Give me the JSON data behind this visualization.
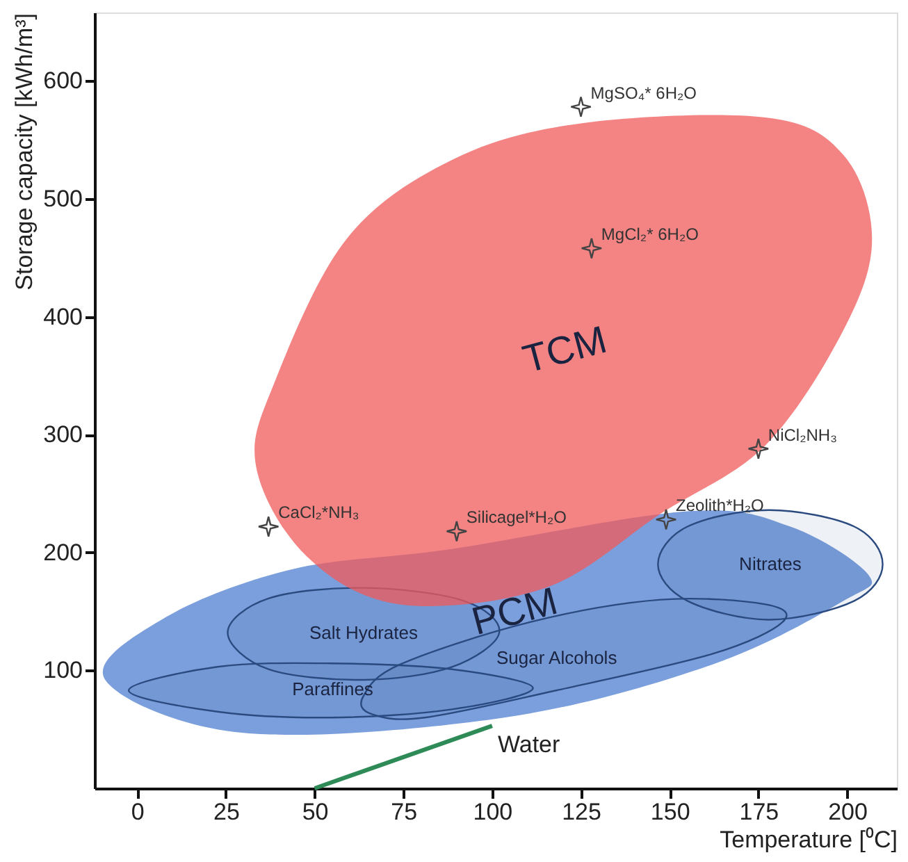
{
  "chart_data": {
    "type": "scatter",
    "xlabel": "Temperature [⁰C]",
    "ylabel": "Storage capacity [kWh/m³]",
    "xlim": [
      -12,
      214
    ],
    "ylim": [
      0,
      658
    ],
    "xticks": [
      0,
      25,
      50,
      75,
      100,
      125,
      150,
      175,
      200
    ],
    "yticks": [
      100,
      200,
      300,
      400,
      500,
      600
    ],
    "grid": false,
    "marker": "star",
    "series": [
      {
        "type": "area",
        "name": "PCM",
        "marker": "none",
        "color": "#4f7fd0",
        "x": [
          -9,
          30,
          103.4,
          162,
          199,
          206,
          184,
          155,
          88.7,
          44,
          8
        ],
        "values": [
          92,
          47,
          60,
          105,
          159,
          181,
          222,
          235,
          203,
          186,
          145
        ]
      },
      {
        "type": "area",
        "name": "Paraffines",
        "marker": "none",
        "color": "#2a4a80",
        "x": [
          -2.4,
          22.6,
          54.5,
          88.7,
          111.5,
          88.7,
          54.5,
          22.6
        ],
        "values": [
          83,
          103,
          106,
          101,
          85,
          67,
          60,
          65
        ]
      },
      {
        "type": "area",
        "name": "Salt Hydrates",
        "marker": "none",
        "color": "#2a4a80",
        "x": [
          25.5,
          37,
          64,
          92,
          102,
          88.7,
          64,
          37
        ],
        "values": [
          132,
          161,
          170,
          159,
          132,
          103,
          92,
          101
        ]
      },
      {
        "type": "area",
        "name": "Sugar Alcohols",
        "marker": "none",
        "color": "#2a4a80",
        "x": [
          63.7,
          74,
          110.7,
          147.5,
          177,
          181.8,
          162,
          118,
          81,
          66
        ],
        "values": [
          78,
          105,
          141,
          160,
          156,
          141,
          114,
          83,
          60,
          63
        ]
      },
      {
        "type": "area",
        "name": "Nitrates",
        "marker": "none",
        "color": "#2a4a80",
        "x": [
          146.7,
          155,
          178,
          202,
          210,
          202,
          178,
          155
        ],
        "values": [
          190,
          222,
          236,
          222,
          190,
          159,
          143,
          159
        ]
      },
      {
        "type": "area",
        "name": "TCM",
        "marker": "none",
        "color": "#f05a5a",
        "x": [
          33.5,
          38.8,
          59,
          88.7,
          125,
          177,
          199,
          207,
          199,
          177,
          147.5,
          115,
          74,
          47.7
        ],
        "values": [
          273,
          345,
          466,
          533,
          564,
          569,
          537,
          466,
          389,
          291,
          233,
          170,
          156,
          197
        ]
      },
      {
        "type": "line",
        "name": "Water",
        "marker": "none",
        "color": "#2e8b57",
        "x": [
          50,
          100
        ],
        "values": [
          0,
          53
        ]
      },
      {
        "color": "#444444",
        "x": [
          125,
          128,
          175,
          149,
          90,
          37
        ],
        "values": [
          578,
          458,
          288,
          228,
          218,
          222
        ]
      }
    ],
    "annotations": [
      {
        "text": "MgSO₄* 6H₂O",
        "x": 125,
        "y": 578
      },
      {
        "text": "MgCl₂* 6H₂O",
        "x": 128,
        "y": 458
      },
      {
        "text": "NiCl₂NH₃",
        "x": 175,
        "y": 288
      },
      {
        "text": "Zeolith*H₂O",
        "x": 149,
        "y": 228
      },
      {
        "text": "Silicagel*H₂O",
        "x": 90,
        "y": 218
      },
      {
        "text": "CaCl₂*NH₃",
        "x": 37,
        "y": 222
      }
    ]
  }
}
